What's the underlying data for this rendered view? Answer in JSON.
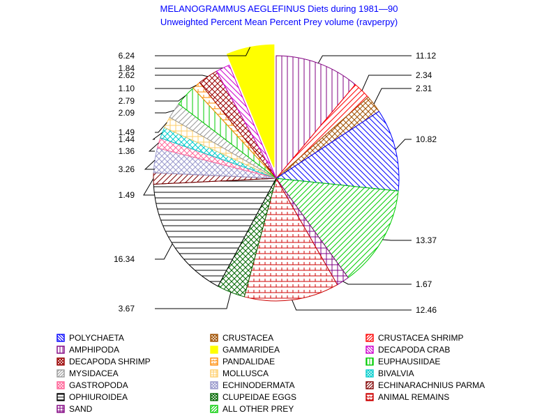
{
  "chart_data": {
    "type": "pie",
    "title": "MELANOGRAMMUS AEGLEFINUS Diets during 1981—90",
    "subtitle": "Unweighted Percent Mean Percent Prey  volume (ravperpy)",
    "legend_position": "bottom",
    "slices": [
      {
        "name": "AMPHIPODA",
        "value": 11.12,
        "label": "11.12",
        "color": "#800080",
        "pattern": "vertical"
      },
      {
        "name": "CRUSTACEA SHRIMP",
        "value": 2.34,
        "label": "2.34",
        "color": "#ff0000",
        "pattern": "diag-up"
      },
      {
        "name": "CRUSTACEA",
        "value": 2.31,
        "label": "2.31",
        "color": "#a05000",
        "pattern": "cross-diag"
      },
      {
        "name": "POLYCHAETA",
        "value": 10.82,
        "label": "10.82",
        "color": "#0000ff",
        "pattern": "diag-down"
      },
      {
        "name": "ALL OTHER PREY",
        "value": 13.37,
        "label": "13.37",
        "color": "#00cc00",
        "pattern": "diag-up"
      },
      {
        "name": "SAND",
        "value": 1.67,
        "label": "1.67",
        "color": "#800080",
        "pattern": "grid"
      },
      {
        "name": "ANIMAL REMAINS",
        "value": 12.46,
        "label": "12.46",
        "color": "#cc0000",
        "pattern": "horiz-grid"
      },
      {
        "name": "CLUPEIDAE EGGS",
        "value": 3.67,
        "label": "3.67",
        "color": "#006600",
        "pattern": "cross-diag"
      },
      {
        "name": "OPHIUROIDEA",
        "value": 16.34,
        "label": "16.34",
        "color": "#000000",
        "pattern": "horizontal"
      },
      {
        "name": "ECHINARACHNIUS PARMA",
        "value": 1.49,
        "label": "1.49",
        "color": "#800000",
        "pattern": "diag-up"
      },
      {
        "name": "ECHINODERMATA",
        "value": 3.26,
        "label": "3.26",
        "color": "#9999cc",
        "pattern": "cross-diag"
      },
      {
        "name": "GASTROPODA",
        "value": 1.36,
        "label": "1.36",
        "color": "#ff6699",
        "pattern": "cross-diag"
      },
      {
        "name": "BIVALVIA",
        "value": 1.44,
        "label": "1.44",
        "color": "#00cccc",
        "pattern": "cross-diag"
      },
      {
        "name": "MOLLUSCA",
        "value": 1.49,
        "label": "1.49",
        "color": "#ffcc66",
        "pattern": "grid"
      },
      {
        "name": "MYSIDACEA",
        "value": 2.09,
        "label": "2.09",
        "color": "#999999",
        "pattern": "diag-up"
      },
      {
        "name": "EUPHAUSIIDAE",
        "value": 2.79,
        "label": "2.79",
        "color": "#00cc00",
        "pattern": "vertical"
      },
      {
        "name": "PANDALIDAE",
        "value": 1.1,
        "label": "1.10",
        "color": "#ff8800",
        "pattern": "horiz-grid"
      },
      {
        "name": "DECAPODA SHRIMP",
        "value": 2.62,
        "label": "2.62",
        "color": "#990000",
        "pattern": "cross-diag"
      },
      {
        "name": "DECAPODA CRAB",
        "value": 1.84,
        "label": "1.84",
        "color": "#cc00cc",
        "pattern": "diag-down"
      },
      {
        "name": "GAMMARIDEA",
        "value": 6.24,
        "label": "6.24",
        "color": "#ffff00",
        "pattern": "solid"
      }
    ],
    "legend": [
      {
        "name": "POLYCHAETA",
        "color": "#0000ff",
        "pattern": "diag-down"
      },
      {
        "name": "CRUSTACEA",
        "color": "#a05000",
        "pattern": "cross-diag"
      },
      {
        "name": "CRUSTACEA SHRIMP",
        "color": "#ff0000",
        "pattern": "diag-up"
      },
      {
        "name": "AMPHIPODA",
        "color": "#800080",
        "pattern": "vertical"
      },
      {
        "name": "GAMMARIDEA",
        "color": "#ffff00",
        "pattern": "solid"
      },
      {
        "name": "DECAPODA CRAB",
        "color": "#cc00cc",
        "pattern": "diag-down"
      },
      {
        "name": "DECAPODA SHRIMP",
        "color": "#990000",
        "pattern": "cross-diag"
      },
      {
        "name": "PANDALIDAE",
        "color": "#ff8800",
        "pattern": "horiz-grid"
      },
      {
        "name": "EUPHAUSIIDAE",
        "color": "#00cc00",
        "pattern": "vertical"
      },
      {
        "name": "MYSIDACEA",
        "color": "#999999",
        "pattern": "diag-up"
      },
      {
        "name": "MOLLUSCA",
        "color": "#ffcc66",
        "pattern": "grid"
      },
      {
        "name": "BIVALVIA",
        "color": "#00cccc",
        "pattern": "cross-diag"
      },
      {
        "name": "GASTROPODA",
        "color": "#ff6699",
        "pattern": "cross-diag"
      },
      {
        "name": "ECHINODERMATA",
        "color": "#9999cc",
        "pattern": "cross-diag"
      },
      {
        "name": "ECHINARACHNIUS PARMA",
        "color": "#800000",
        "pattern": "diag-up"
      },
      {
        "name": "OPHIUROIDEA",
        "color": "#000000",
        "pattern": "horizontal"
      },
      {
        "name": "CLUPEIDAE EGGS",
        "color": "#006600",
        "pattern": "cross-diag"
      },
      {
        "name": "ANIMAL REMAINS",
        "color": "#cc0000",
        "pattern": "horiz-grid"
      },
      {
        "name": "SAND",
        "color": "#800080",
        "pattern": "grid"
      },
      {
        "name": "ALL OTHER PREY",
        "color": "#00cc00",
        "pattern": "diag-up"
      }
    ]
  }
}
